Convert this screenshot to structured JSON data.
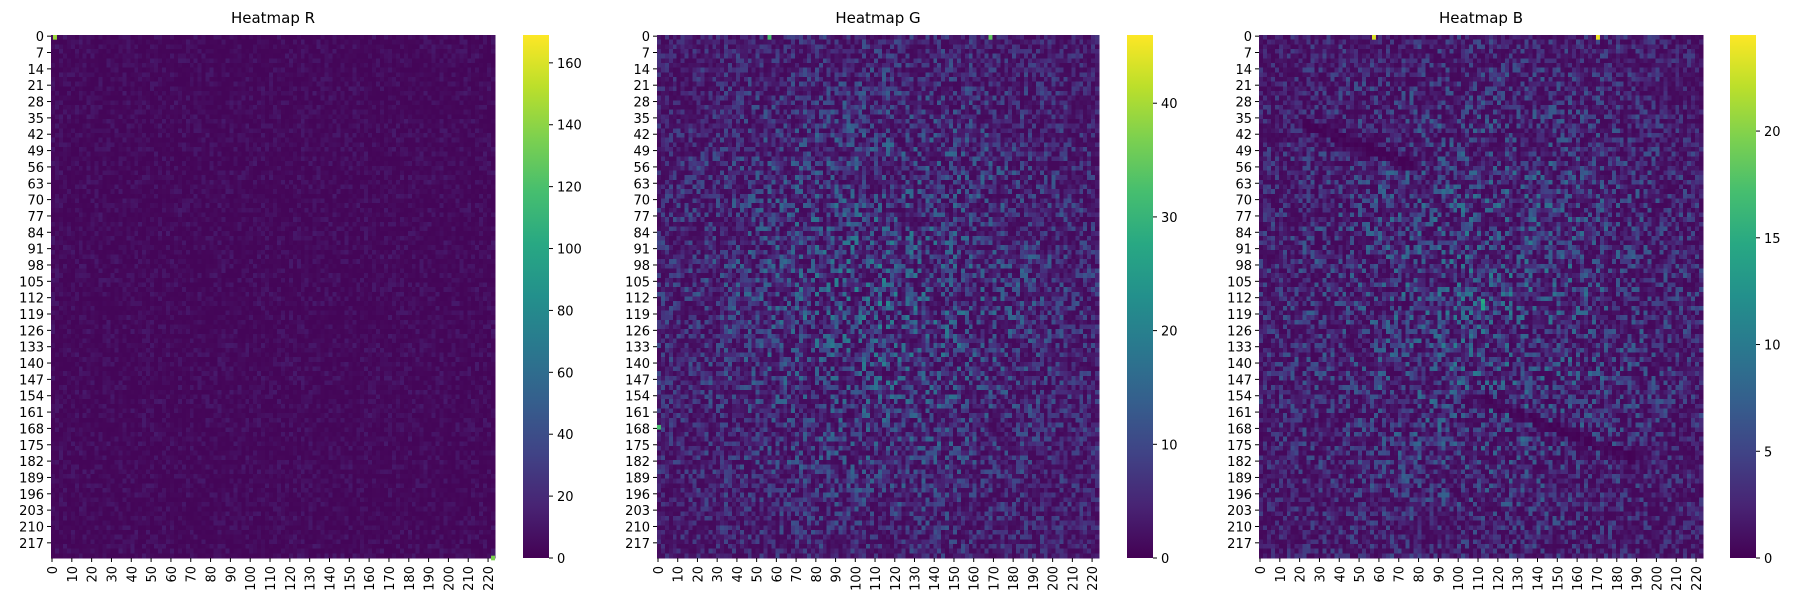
{
  "chart_data": [
    {
      "type": "heatmap",
      "title": "Heatmap R",
      "rows": 224,
      "cols": 224,
      "y_tick_labels": [
        "0",
        "7",
        "14",
        "21",
        "28",
        "35",
        "42",
        "49",
        "56",
        "63",
        "70",
        "77",
        "84",
        "91",
        "98",
        "105",
        "112",
        "119",
        "126",
        "133",
        "140",
        "147",
        "154",
        "161",
        "168",
        "175",
        "182",
        "189",
        "196",
        "203",
        "210",
        "217"
      ],
      "x_tick_labels": [
        "0",
        "10",
        "20",
        "30",
        "40",
        "50",
        "60",
        "70",
        "80",
        "90",
        "100",
        "110",
        "120",
        "130",
        "140",
        "150",
        "160",
        "170",
        "180",
        "190",
        "200",
        "210",
        "220"
      ],
      "colorbar": {
        "min": 0,
        "max": 169,
        "ticks": [
          "0",
          "20",
          "40",
          "60",
          "80",
          "100",
          "120",
          "140",
          "160"
        ]
      },
      "colormap": "viridis",
      "typical_value_range": [
        0,
        12
      ],
      "notable": "cell values mostly near 0; isolated bright cells at top-left and bottom-right corners"
    },
    {
      "type": "heatmap",
      "title": "Heatmap G",
      "rows": 224,
      "cols": 224,
      "y_tick_labels": [
        "0",
        "7",
        "14",
        "21",
        "28",
        "35",
        "42",
        "49",
        "56",
        "63",
        "70",
        "77",
        "84",
        "91",
        "98",
        "105",
        "112",
        "119",
        "126",
        "133",
        "140",
        "147",
        "154",
        "161",
        "168",
        "175",
        "182",
        "189",
        "196",
        "203",
        "210",
        "217"
      ],
      "x_tick_labels": [
        "0",
        "10",
        "20",
        "30",
        "40",
        "50",
        "60",
        "70",
        "80",
        "90",
        "100",
        "110",
        "120",
        "130",
        "140",
        "150",
        "160",
        "170",
        "180",
        "190",
        "200",
        "210",
        "220"
      ],
      "colorbar": {
        "min": 0,
        "max": 46,
        "ticks": [
          "0",
          "10",
          "20",
          "30",
          "40"
        ]
      },
      "colormap": "viridis",
      "typical_value_range": [
        0,
        15
      ],
      "notable": "brighter noise concentrated toward the center; a few bright cells along top edge"
    },
    {
      "type": "heatmap",
      "title": "Heatmap B",
      "rows": 224,
      "cols": 224,
      "y_tick_labels": [
        "0",
        "7",
        "14",
        "21",
        "28",
        "35",
        "42",
        "49",
        "56",
        "63",
        "70",
        "77",
        "84",
        "91",
        "98",
        "105",
        "112",
        "119",
        "126",
        "133",
        "140",
        "147",
        "154",
        "161",
        "168",
        "175",
        "182",
        "189",
        "196",
        "203",
        "210",
        "217"
      ],
      "x_tick_labels": [
        "0",
        "10",
        "20",
        "30",
        "40",
        "50",
        "60",
        "70",
        "80",
        "90",
        "100",
        "110",
        "120",
        "130",
        "140",
        "150",
        "160",
        "170",
        "180",
        "190",
        "200",
        "210",
        "220"
      ],
      "colorbar": {
        "min": 0,
        "max": 24.5,
        "ticks": [
          "0",
          "5",
          "10",
          "15",
          "20"
        ]
      },
      "colormap": "viridis",
      "typical_value_range": [
        0,
        10
      ],
      "notable": "center hot spot near row 115, col 112; two dark diagonal streaks; bright cells along top edge"
    }
  ]
}
